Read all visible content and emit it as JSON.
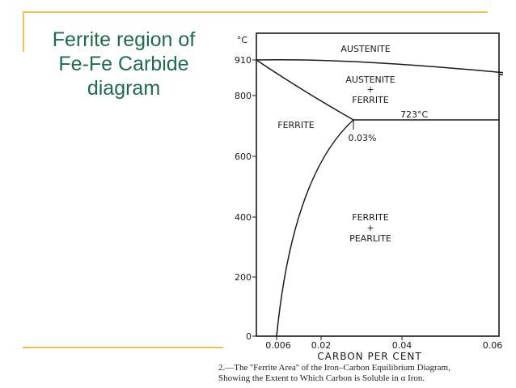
{
  "slide": {
    "title": "Ferrite region of\nFe-Fe Carbide\ndiagram",
    "accent_color": "#1f6b4a",
    "rule_color": "#e6c35a"
  },
  "diagram": {
    "y_unit": "°C",
    "y_ticks": [
      "910",
      "800",
      "600",
      "400",
      "200",
      "0"
    ],
    "x_ticks": [
      "0.006",
      "0.02",
      "0.04",
      "0.06"
    ],
    "x_zero": "0",
    "x_axis_label": "CARBON  PER  CENT",
    "regions": {
      "austenite": "AUSTENITE",
      "austenite_ferrite": [
        "AUSTENITE",
        "+",
        "FERRITE"
      ],
      "ferrite": "FERRITE",
      "ferrite_pearlite": [
        "FERRITE",
        "+",
        "PEARLITE"
      ]
    },
    "eutectoid_temp": "723°C",
    "max_solubility": "0.03%"
  },
  "caption": {
    "line1": "2.—The ''Ferrite Area'' of the Iron–Carbon Equilibrium Diagram,",
    "line2": "Showing the Extent to Which Carbon is Soluble in α Iron."
  }
}
